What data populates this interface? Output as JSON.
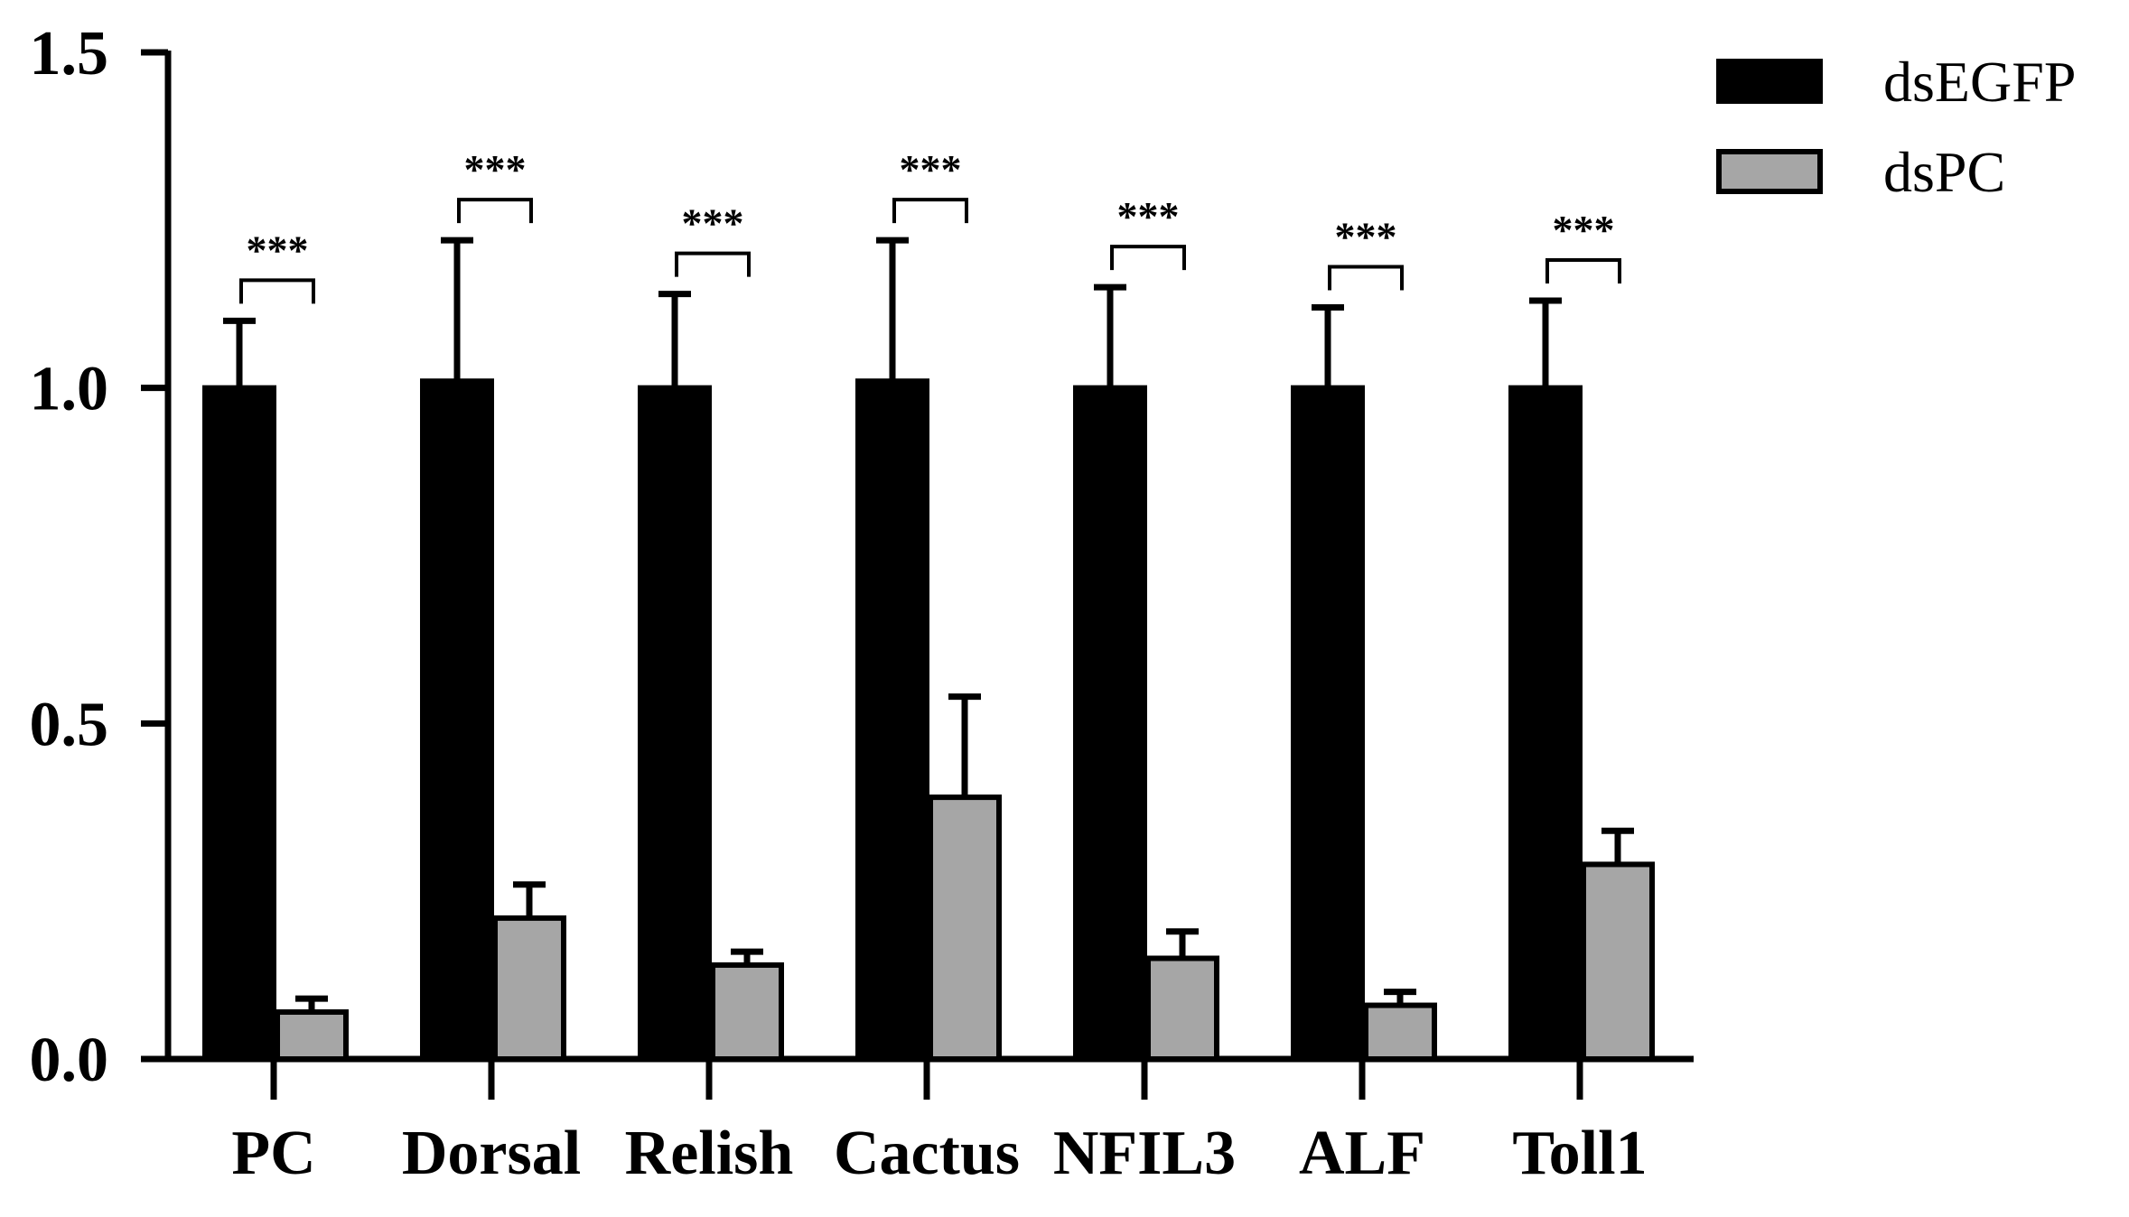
{
  "chart_data": {
    "type": "bar",
    "categories": [
      "PC",
      "Dorsal",
      "Relish",
      "Cactus",
      "NFIL3",
      "ALF",
      "Toll1"
    ],
    "series": [
      {
        "name": "dsEGFP",
        "values": [
          1.0,
          1.01,
          1.0,
          1.01,
          1.0,
          1.0,
          1.0
        ],
        "errors": [
          0.1,
          0.21,
          0.14,
          0.21,
          0.15,
          0.12,
          0.13
        ],
        "color": "#000000"
      },
      {
        "name": "dsPC",
        "values": [
          0.07,
          0.21,
          0.14,
          0.39,
          0.15,
          0.08,
          0.29
        ],
        "errors": [
          0.02,
          0.05,
          0.02,
          0.15,
          0.04,
          0.02,
          0.05
        ],
        "color": "#a6a6a6"
      }
    ],
    "significance": [
      "***",
      "***",
      "***",
      "***",
      "***",
      "***",
      "***"
    ],
    "y_ticks": [
      "0.0",
      "0.5",
      "1.0",
      "1.5"
    ],
    "ylim": [
      0,
      1.5
    ],
    "title": "",
    "xlabel": "",
    "ylabel": "",
    "legend_position": "top-right",
    "grid": false
  }
}
